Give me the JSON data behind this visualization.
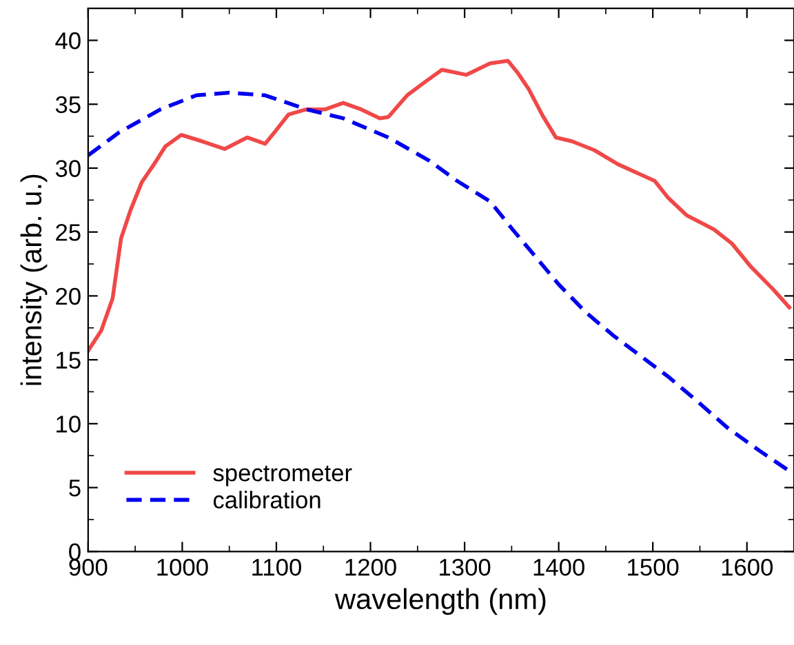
{
  "chart_data": {
    "type": "line",
    "xlabel": "wavelength (nm)",
    "ylabel": "intensity (arb. u.)",
    "xlim": [
      900,
      1650
    ],
    "ylim": [
      0,
      42.5
    ],
    "xticks": [
      900,
      1000,
      1100,
      1200,
      1300,
      1400,
      1500,
      1600
    ],
    "yticks": [
      0,
      5,
      10,
      15,
      20,
      25,
      30,
      35,
      40
    ],
    "grid": false,
    "legend": "bottom left",
    "series": [
      {
        "name": "spectrometer",
        "color": "#f04848",
        "line_style": "solid",
        "x": [
          900,
          914,
          926,
          935,
          945,
          957,
          970,
          982,
          999,
          1021,
          1045,
          1069,
          1088,
          1098,
          1113,
          1132,
          1152,
          1171,
          1190,
          1210,
          1219,
          1239,
          1259,
          1276,
          1302,
          1327,
          1346,
          1356,
          1368,
          1383,
          1397,
          1414,
          1438,
          1463,
          1487,
          1502,
          1516,
          1536,
          1565,
          1584,
          1604,
          1628,
          1645
        ],
        "values": [
          15.7,
          17.3,
          19.8,
          24.5,
          26.7,
          28.9,
          30.3,
          31.7,
          32.6,
          32.1,
          31.5,
          32.4,
          31.9,
          32.8,
          34.2,
          34.6,
          34.6,
          35.1,
          34.6,
          33.9,
          34.0,
          35.7,
          36.8,
          37.7,
          37.3,
          38.2,
          38.4,
          37.5,
          36.2,
          34.1,
          32.4,
          32.1,
          31.4,
          30.3,
          29.5,
          29.0,
          27.7,
          26.3,
          25.2,
          24.1,
          22.3,
          20.5,
          19.1
        ]
      },
      {
        "name": "calibration",
        "color": "#0000f0",
        "line_style": "dashed",
        "x": [
          900,
          933,
          977,
          1015,
          1050,
          1088,
          1132,
          1171,
          1219,
          1262,
          1292,
          1327,
          1351,
          1375,
          1400,
          1429,
          1458,
          1487,
          1516,
          1545,
          1579,
          1613,
          1645
        ],
        "values": [
          31.0,
          32.8,
          34.6,
          35.7,
          35.9,
          35.7,
          34.6,
          33.9,
          32.4,
          30.6,
          29.0,
          27.4,
          25.2,
          23.1,
          20.9,
          18.7,
          16.9,
          15.3,
          13.7,
          11.9,
          9.7,
          7.9,
          6.3
        ]
      }
    ]
  }
}
